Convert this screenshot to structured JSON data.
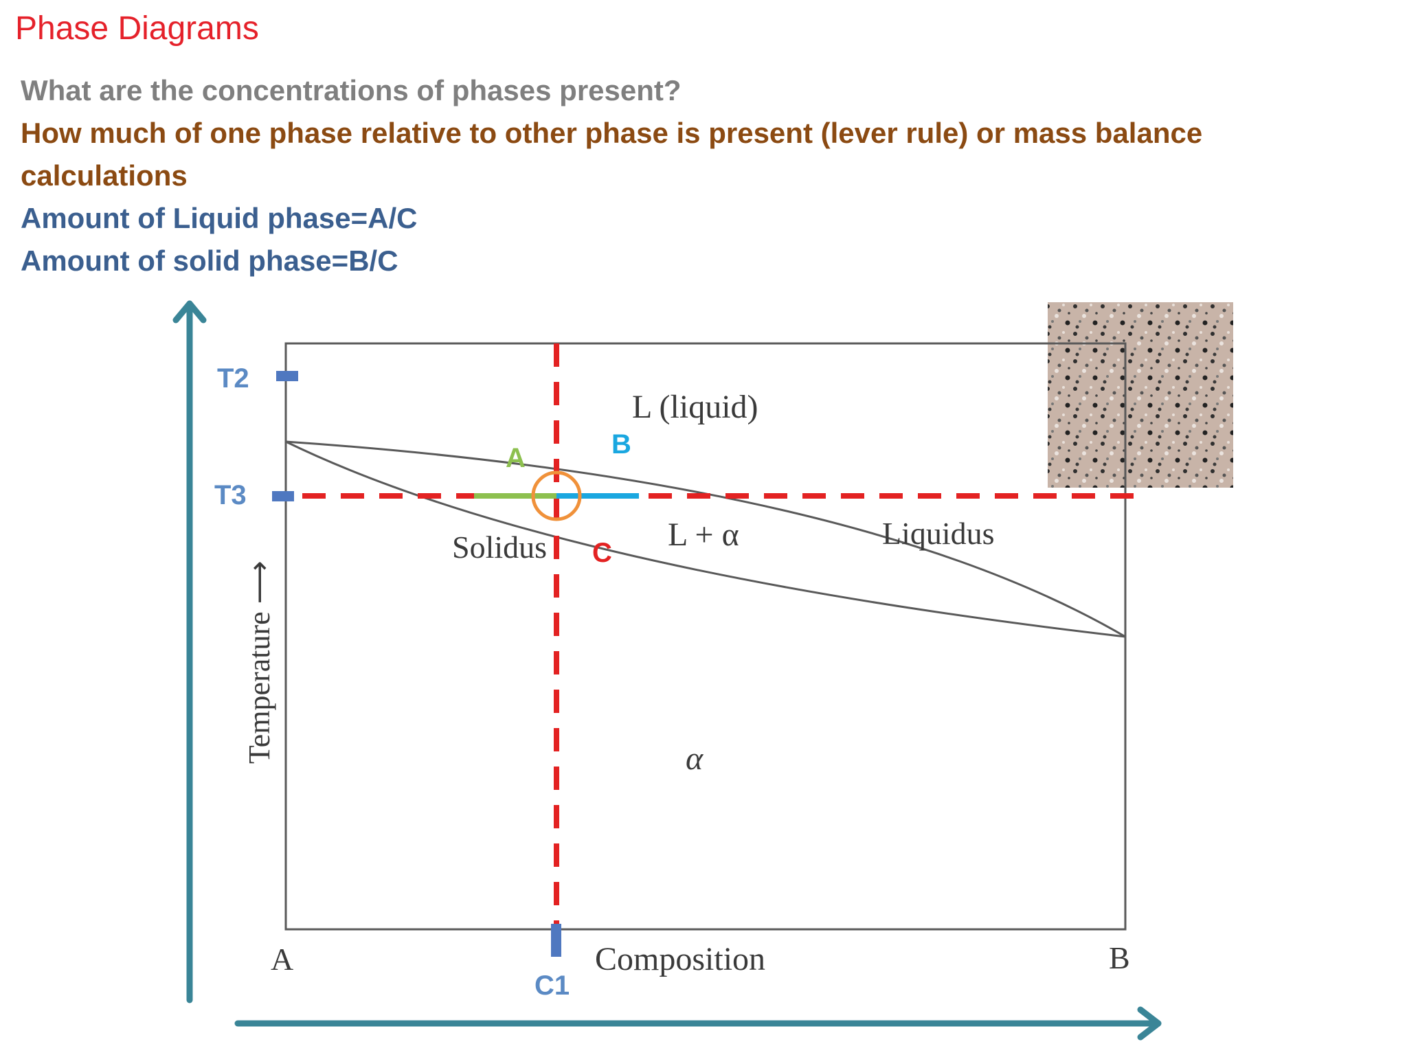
{
  "slide": {
    "title": "Phase Diagrams",
    "lines": [
      "What are the concentrations of phases present?",
      "How much of one phase relative to other phase is present (lever rule) or mass balance",
      "calculations",
      "Amount of Liquid phase=A/C",
      "Amount of solid phase=B/C"
    ]
  },
  "diagram": {
    "region_labels": {
      "liquid": "L (liquid)",
      "two_phase": "L + α",
      "solid": "α"
    },
    "curve_labels": {
      "solidus": "Solidus",
      "liquidus": "Liquidus"
    },
    "axis_labels": {
      "y": "Temperature ⟶",
      "x": "Composition",
      "x_left": "A",
      "x_right": "B"
    },
    "markers": {
      "t2": "T2",
      "t3": "T3",
      "c1": "C1",
      "seg_a": "A",
      "seg_b": "B",
      "point_c": "C"
    },
    "colors": {
      "arrow": "#3a8597",
      "dashed": "#e32222",
      "segment_a": "#8dc04f",
      "segment_b": "#1aa7e0",
      "circle": "#f0913a",
      "marker": "#4f78c0",
      "label_a": "#8dc04f",
      "label_b": "#1aa7e0",
      "label_c": "#e32222"
    }
  }
}
